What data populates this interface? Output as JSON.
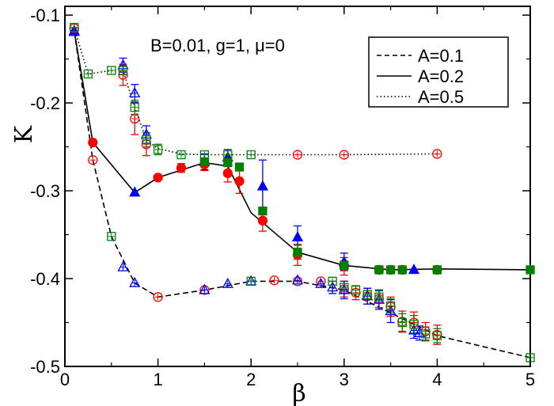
{
  "chart_data": {
    "type": "scatter",
    "title": "",
    "xlabel": "β",
    "ylabel": "K",
    "xlim": [
      0,
      5
    ],
    "ylim": [
      -0.5,
      -0.09
    ],
    "xticks": [
      0,
      1,
      2,
      3,
      4,
      5
    ],
    "xtick_labels": [
      "0",
      "1",
      "2",
      "3",
      "4",
      "5"
    ],
    "yticks": [
      -0.5,
      -0.4,
      -0.3,
      -0.2,
      -0.1
    ],
    "ytick_labels": [
      "-0.5",
      "-0.4",
      "-0.3",
      "-0.2",
      "-0.1"
    ],
    "grid": false,
    "annotation": "B=0.01, g=1, μ=0",
    "legend": {
      "placement": "top-right",
      "entries": [
        {
          "label": "A=0.1",
          "dash": "dashed"
        },
        {
          "label": "A=0.2",
          "dash": "solid"
        },
        {
          "label": "A=0.5",
          "dash": "dotted"
        }
      ]
    },
    "colors": {
      "red": "#ff0000",
      "blue": "#0000ff",
      "green": "#008000",
      "line": "#000000"
    },
    "lines": [
      {
        "style": "dashed",
        "x": [
          0.1,
          0.3,
          0.5,
          0.75,
          1.0,
          1.5,
          2.0,
          2.5,
          3.0,
          4.0,
          5.0
        ],
        "y": [
          -0.118,
          -0.265,
          -0.352,
          -0.405,
          -0.421,
          -0.413,
          -0.403,
          -0.403,
          -0.413,
          -0.465,
          -0.49
        ]
      },
      {
        "style": "solid",
        "x": [
          0.1,
          0.3,
          0.75,
          1.0,
          1.5,
          1.75,
          2.0,
          2.5,
          3.0,
          3.5,
          4.0,
          5.0
        ],
        "y": [
          -0.118,
          -0.245,
          -0.302,
          -0.285,
          -0.268,
          -0.272,
          -0.325,
          -0.37,
          -0.385,
          -0.39,
          -0.389,
          -0.39
        ]
      },
      {
        "style": "dotted",
        "x": [
          0.1,
          0.25,
          0.5,
          0.625,
          0.75,
          0.875,
          1.0,
          1.25,
          1.5,
          2.0,
          2.5,
          3.0,
          4.0
        ],
        "y": [
          -0.115,
          -0.167,
          -0.163,
          -0.163,
          -0.205,
          -0.242,
          -0.252,
          -0.258,
          -0.259,
          -0.259,
          -0.259,
          -0.259,
          -0.258
        ]
      }
    ],
    "series": [
      {
        "marker": "circle-filled",
        "color": "red",
        "points": [
          [
            0.3,
            -0.245,
            0
          ],
          [
            1.0,
            -0.285,
            0
          ],
          [
            1.25,
            -0.274,
            0.005
          ],
          [
            1.5,
            -0.27,
            0.007
          ],
          [
            1.75,
            -0.28,
            0.01
          ],
          [
            1.875,
            -0.289,
            0.014
          ],
          [
            2.125,
            -0.334,
            0.012
          ],
          [
            2.5,
            -0.373,
            0.012
          ],
          [
            3.0,
            -0.386,
            0.01
          ],
          [
            3.375,
            -0.39,
            0
          ],
          [
            3.5,
            -0.39,
            0
          ],
          [
            3.625,
            -0.39,
            0
          ],
          [
            4.0,
            -0.39,
            0
          ]
        ]
      },
      {
        "marker": "triangle-filled",
        "color": "blue",
        "points": [
          [
            0.1,
            -0.119,
            0
          ],
          [
            0.75,
            -0.302,
            0
          ],
          [
            1.5,
            -0.267,
            0.009
          ],
          [
            1.75,
            -0.262,
            0.009
          ],
          [
            2.125,
            -0.295,
            0.03
          ],
          [
            2.5,
            -0.353,
            0.013
          ],
          [
            3.0,
            -0.381,
            0.01
          ],
          [
            3.75,
            -0.39,
            0
          ]
        ]
      },
      {
        "marker": "square-filled",
        "color": "green",
        "points": [
          [
            1.5,
            -0.267,
            0
          ],
          [
            1.75,
            -0.268,
            0
          ],
          [
            1.875,
            -0.273,
            0
          ],
          [
            2.125,
            -0.323,
            0
          ],
          [
            2.5,
            -0.37,
            0.008
          ],
          [
            3.0,
            -0.385,
            0.005
          ],
          [
            3.375,
            -0.39,
            0
          ],
          [
            3.5,
            -0.39,
            0
          ],
          [
            3.625,
            -0.39,
            0
          ],
          [
            4.0,
            -0.39,
            0
          ],
          [
            5.0,
            -0.39,
            0
          ]
        ]
      },
      {
        "marker": "circle-open-plus",
        "color": "red",
        "points": [
          [
            0.1,
            -0.115,
            0
          ],
          [
            0.3,
            -0.265,
            0
          ],
          [
            0.625,
            -0.168,
            0.012
          ],
          [
            0.75,
            -0.218,
            0.018
          ],
          [
            0.875,
            -0.247,
            0.013
          ],
          [
            1.0,
            -0.421,
            0
          ],
          [
            1.5,
            -0.413,
            0
          ],
          [
            2.25,
            -0.402,
            0
          ],
          [
            2.5,
            -0.403,
            0
          ],
          [
            2.75,
            -0.403,
            0
          ],
          [
            3.0,
            -0.412,
            0.009
          ],
          [
            3.125,
            -0.416,
            0.008
          ],
          [
            3.25,
            -0.42,
            0.009
          ],
          [
            3.375,
            -0.423,
            0.01
          ],
          [
            3.5,
            -0.432,
            0.011
          ],
          [
            3.625,
            -0.449,
            0.012
          ],
          [
            3.75,
            -0.45,
            0.012
          ],
          [
            3.875,
            -0.46,
            0.01
          ],
          [
            4.0,
            -0.464,
            0.011
          ],
          [
            2.5,
            -0.259,
            0
          ],
          [
            3.0,
            -0.259,
            0
          ],
          [
            4.0,
            -0.258,
            0
          ]
        ]
      },
      {
        "marker": "triangle-open-plus",
        "color": "blue",
        "points": [
          [
            0.1,
            -0.118,
            0
          ],
          [
            0.625,
            -0.157,
            0.008
          ],
          [
            0.75,
            -0.189,
            0.01
          ],
          [
            0.875,
            -0.236,
            0.01
          ],
          [
            0.75,
            -0.405,
            0
          ],
          [
            0.625,
            -0.387,
            0
          ],
          [
            1.5,
            -0.413,
            0
          ],
          [
            1.75,
            -0.406,
            0
          ],
          [
            2.0,
            -0.403,
            0
          ],
          [
            2.5,
            -0.402,
            0
          ],
          [
            2.75,
            -0.406,
            0
          ],
          [
            2.875,
            -0.41,
            0.007
          ],
          [
            3.0,
            -0.413,
            0.01
          ],
          [
            3.25,
            -0.42,
            0.009
          ],
          [
            3.375,
            -0.424,
            0.011
          ],
          [
            3.5,
            -0.437,
            0.013
          ],
          [
            3.75,
            -0.459,
            0.009
          ],
          [
            3.81,
            -0.462,
            0.008
          ]
        ]
      },
      {
        "marker": "square-open-plus",
        "color": "green",
        "points": [
          [
            0.1,
            -0.114,
            0
          ],
          [
            0.25,
            -0.167,
            0
          ],
          [
            0.5,
            -0.163,
            0
          ],
          [
            0.625,
            -0.163,
            0.005
          ],
          [
            0.75,
            -0.205,
            0.008
          ],
          [
            0.875,
            -0.242,
            0.008
          ],
          [
            1.0,
            -0.253,
            0.006
          ],
          [
            1.25,
            -0.259,
            0
          ],
          [
            1.5,
            -0.259,
            0
          ],
          [
            1.75,
            -0.259,
            0
          ],
          [
            2.0,
            -0.259,
            0
          ],
          [
            0.5,
            -0.352,
            0
          ],
          [
            2.0,
            -0.403,
            0
          ],
          [
            2.875,
            -0.403,
            0
          ],
          [
            3.0,
            -0.41,
            0
          ],
          [
            3.125,
            -0.413,
            0
          ],
          [
            3.25,
            -0.418,
            0
          ],
          [
            3.375,
            -0.421,
            0.007
          ],
          [
            3.5,
            -0.431,
            0.008
          ],
          [
            3.625,
            -0.45,
            0.01
          ],
          [
            3.75,
            -0.452,
            0.01
          ],
          [
            3.875,
            -0.463,
            0.008
          ],
          [
            4.0,
            -0.465,
            0.008
          ],
          [
            5.0,
            -0.49,
            0
          ]
        ]
      }
    ]
  }
}
